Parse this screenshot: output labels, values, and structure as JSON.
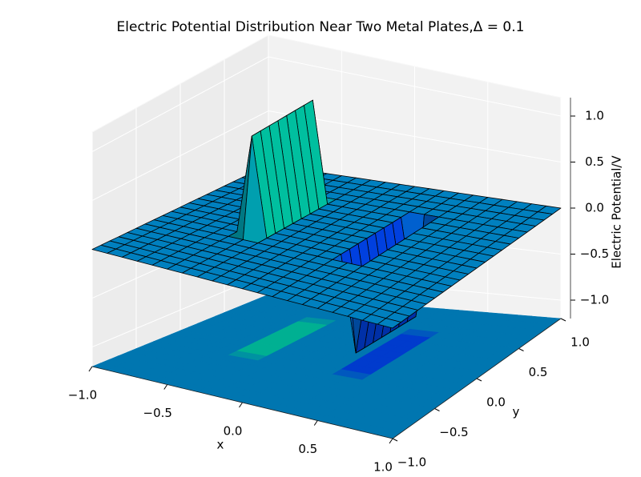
{
  "chart_data": {
    "type": "surface3d",
    "title": "Electric Potential Distribution Near Two Metal Plates,Δ = 0.1",
    "xlabel": "x",
    "ylabel": "y",
    "zlabel": "Electric Potential/V",
    "colormap": "winter",
    "x": [
      -1,
      -0.9,
      -0.8,
      -0.7,
      -0.6,
      -0.5,
      -0.4,
      -0.3,
      -0.2,
      -0.1,
      0,
      0.1,
      0.2,
      0.3,
      0.4,
      0.5,
      0.6,
      0.7,
      0.8,
      0.9,
      1
    ],
    "y": [
      -1,
      -0.9,
      -0.8,
      -0.7,
      -0.6,
      -0.5,
      -0.4,
      -0.3,
      -0.2,
      -0.1,
      0,
      0.1,
      0.2,
      0.3,
      0.4,
      0.5,
      0.6,
      0.7,
      0.8,
      0.9,
      1
    ],
    "z": [
      [
        0,
        0,
        0,
        0,
        0,
        0,
        0,
        0,
        0,
        0,
        0,
        0,
        0,
        0,
        0,
        0,
        0,
        0,
        0,
        0,
        0
      ],
      [
        0,
        0,
        0,
        0,
        0,
        0,
        0,
        0,
        0,
        0,
        0,
        0,
        0,
        0,
        0,
        0,
        0,
        0,
        0,
        0,
        0
      ],
      [
        0,
        0,
        0,
        0,
        0,
        0,
        0,
        0,
        0,
        0,
        0,
        0,
        0,
        0,
        0,
        0,
        0,
        0,
        0,
        0,
        0
      ],
      [
        0,
        0,
        0,
        0,
        0,
        0,
        0,
        0,
        0,
        0,
        0,
        0,
        0,
        0,
        0,
        0,
        0,
        0,
        0,
        0,
        0
      ],
      [
        0,
        0,
        0,
        0,
        0,
        0,
        0,
        0,
        0,
        0,
        0,
        0,
        0,
        0,
        0,
        0,
        0,
        0,
        0,
        0,
        0
      ],
      [
        0,
        0,
        0,
        0,
        0,
        0,
        0,
        0,
        0,
        0,
        0,
        0,
        0,
        0,
        0,
        0,
        0,
        0,
        0,
        0,
        0
      ],
      [
        0,
        0,
        0,
        0,
        0,
        0,
        0,
        0,
        1,
        1,
        1,
        1,
        1,
        1,
        1,
        1,
        0,
        0,
        0,
        0,
        0
      ],
      [
        0,
        0,
        0,
        0,
        0,
        0,
        0,
        0,
        0,
        0,
        0,
        0,
        0,
        0,
        0,
        0,
        0,
        0,
        0,
        0,
        0
      ],
      [
        0,
        0,
        0,
        0,
        0,
        0,
        0,
        0,
        0,
        0,
        0,
        0,
        0,
        0,
        0,
        0,
        0,
        0,
        0,
        0,
        0
      ],
      [
        0,
        0,
        0,
        0,
        0,
        0,
        0,
        0,
        0,
        0,
        0,
        0,
        0,
        0,
        0,
        0,
        0,
        0,
        0,
        0,
        0
      ],
      [
        0,
        0,
        0,
        0,
        0,
        0,
        0,
        0,
        0,
        0,
        0,
        0,
        0,
        0,
        0,
        0,
        0,
        0,
        0,
        0,
        0
      ],
      [
        0,
        0,
        0,
        0,
        0,
        0,
        0,
        0,
        0,
        0,
        0,
        0,
        0,
        0,
        0,
        0,
        0,
        0,
        0,
        0,
        0
      ],
      [
        0,
        0,
        0,
        0,
        0,
        0,
        0,
        0,
        0,
        0,
        0,
        0,
        0,
        0,
        0,
        0,
        0,
        0,
        0,
        0,
        0
      ],
      [
        0,
        0,
        0,
        0,
        0,
        0,
        0,
        0,
        -1,
        -1,
        -1,
        -1,
        -1,
        -1,
        -1,
        -1,
        0,
        0,
        0,
        0,
        0
      ],
      [
        0,
        0,
        0,
        0,
        0,
        0,
        0,
        0,
        0,
        0,
        0,
        0,
        0,
        0,
        0,
        0,
        0,
        0,
        0,
        0,
        0
      ],
      [
        0,
        0,
        0,
        0,
        0,
        0,
        0,
        0,
        0,
        0,
        0,
        0,
        0,
        0,
        0,
        0,
        0,
        0,
        0,
        0,
        0
      ],
      [
        0,
        0,
        0,
        0,
        0,
        0,
        0,
        0,
        0,
        0,
        0,
        0,
        0,
        0,
        0,
        0,
        0,
        0,
        0,
        0,
        0
      ],
      [
        0,
        0,
        0,
        0,
        0,
        0,
        0,
        0,
        0,
        0,
        0,
        0,
        0,
        0,
        0,
        0,
        0,
        0,
        0,
        0,
        0
      ],
      [
        0,
        0,
        0,
        0,
        0,
        0,
        0,
        0,
        0,
        0,
        0,
        0,
        0,
        0,
        0,
        0,
        0,
        0,
        0,
        0,
        0
      ],
      [
        0,
        0,
        0,
        0,
        0,
        0,
        0,
        0,
        0,
        0,
        0,
        0,
        0,
        0,
        0,
        0,
        0,
        0,
        0,
        0,
        0
      ],
      [
        0,
        0,
        0,
        0,
        0,
        0,
        0,
        0,
        0,
        0,
        0,
        0,
        0,
        0,
        0,
        0,
        0,
        0,
        0,
        0,
        0
      ]
    ],
    "xlim": [
      -1,
      1
    ],
    "ylim": [
      -1,
      1
    ],
    "zlim": [
      -1.2,
      1.2
    ],
    "xticks": [
      {
        "value": -1,
        "label": "−1.0"
      },
      {
        "value": -0.5,
        "label": "−0.5"
      },
      {
        "value": 0,
        "label": "0.0"
      },
      0.5,
      {
        "value": 1,
        "label": "1.0"
      }
    ],
    "yticks": [
      {
        "value": -1,
        "label": "−1.0"
      },
      {
        "value": -0.5,
        "label": "−0.5"
      },
      {
        "value": 0,
        "label": "0.0"
      },
      0.5,
      {
        "value": 1,
        "label": "1.0"
      }
    ],
    "zticks": [
      {
        "value": -1,
        "label": "−1.0"
      },
      {
        "value": -0.5,
        "label": "−0.5"
      },
      {
        "value": 0,
        "label": "0.0"
      },
      0.5,
      {
        "value": 1,
        "label": "1.0"
      }
    ],
    "grid": true,
    "floor_contour": true
  }
}
